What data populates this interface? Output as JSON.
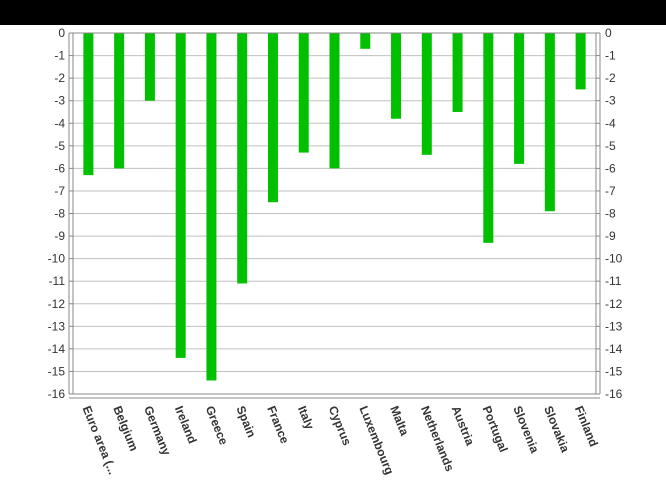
{
  "colors": {
    "bar": "#00c000",
    "grid": "#c0c0c0",
    "axis": "#888888",
    "background": "#ffffff",
    "frame": "#000000"
  },
  "chart_data": {
    "type": "bar",
    "title": "",
    "xlabel": "",
    "ylabel": "",
    "ylim": [
      -16,
      0
    ],
    "yticks": [
      0,
      -1,
      -2,
      -3,
      -4,
      -5,
      -6,
      -7,
      -8,
      -9,
      -10,
      -11,
      -12,
      -13,
      -14,
      -15,
      -16
    ],
    "grid": true,
    "y_axis_both_sides": true,
    "categories": [
      "Euro area (...",
      "Belgium",
      "Germany",
      "Ireland",
      "Greece",
      "Spain",
      "France",
      "Italy",
      "Cyprus",
      "Luxembourg",
      "Malta",
      "Netherlands",
      "Austria",
      "Portugal",
      "Slovenia",
      "Slovakia",
      "Finland"
    ],
    "values": [
      -6.3,
      -6.0,
      -3.0,
      -14.4,
      -15.4,
      -11.1,
      -7.5,
      -5.3,
      -6.0,
      -0.7,
      -3.8,
      -5.4,
      -3.5,
      -9.3,
      -5.8,
      -7.9,
      -2.5
    ]
  }
}
